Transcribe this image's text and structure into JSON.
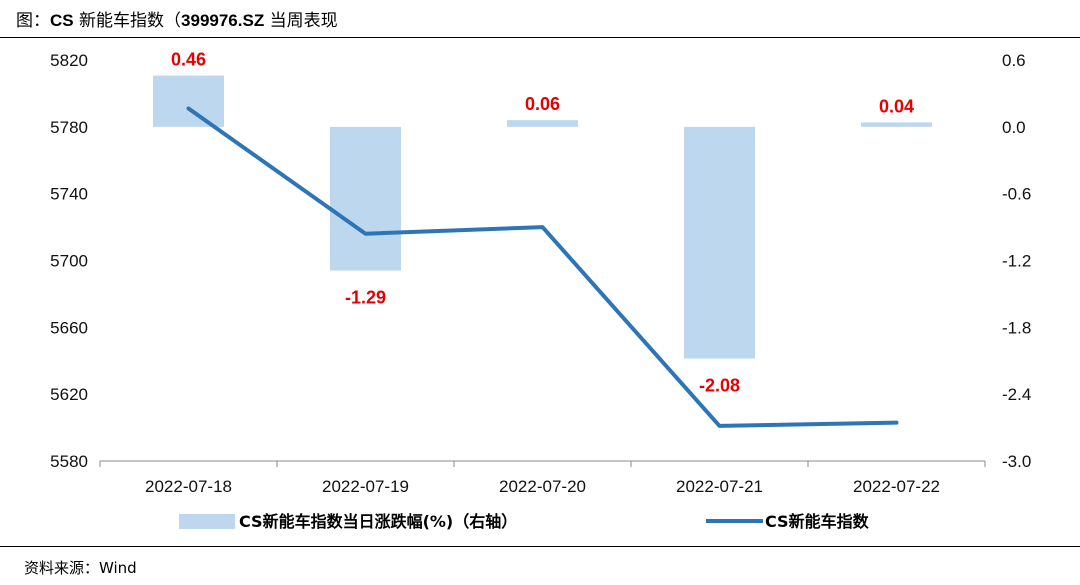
{
  "header": {
    "prefix": "图：",
    "title_bold": "CS",
    "title_mid": " 新能车指数（",
    "code_bold": "399976.SZ",
    "title_end": " 当周表现"
  },
  "footer": {
    "source": "资料来源：Wind"
  },
  "colors": {
    "bar": "#bdd7ee",
    "line": "#2e75b6",
    "label": "#e60000"
  },
  "chart_data": {
    "type": "bar+line",
    "categories": [
      "2022-07-18",
      "2022-07-19",
      "2022-07-20",
      "2022-07-21",
      "2022-07-22"
    ],
    "series": [
      {
        "name": "CS新能车指数当日涨跌幅(%)（右轴）",
        "type": "bar",
        "axis": "right",
        "values": [
          0.46,
          -1.29,
          0.06,
          -2.08,
          0.04
        ],
        "data_labels": [
          "0.46",
          "-1.29",
          "0.06",
          "-2.08",
          "0.04"
        ]
      },
      {
        "name": "CS新能车指数",
        "type": "line",
        "axis": "left",
        "values": [
          5791,
          5716,
          5720,
          5601,
          5603
        ]
      }
    ],
    "left_axis": {
      "min": 5580,
      "max": 5820,
      "ticks": [
        "5820",
        "5780",
        "5740",
        "5700",
        "5660",
        "5620",
        "5580"
      ]
    },
    "right_axis": {
      "min": -3.0,
      "max": 0.6,
      "ticks": [
        "0.6",
        "0.0",
        "-0.6",
        "-1.2",
        "-1.8",
        "-2.4",
        "-3.0"
      ]
    },
    "grid": false,
    "legend_position": "bottom"
  }
}
